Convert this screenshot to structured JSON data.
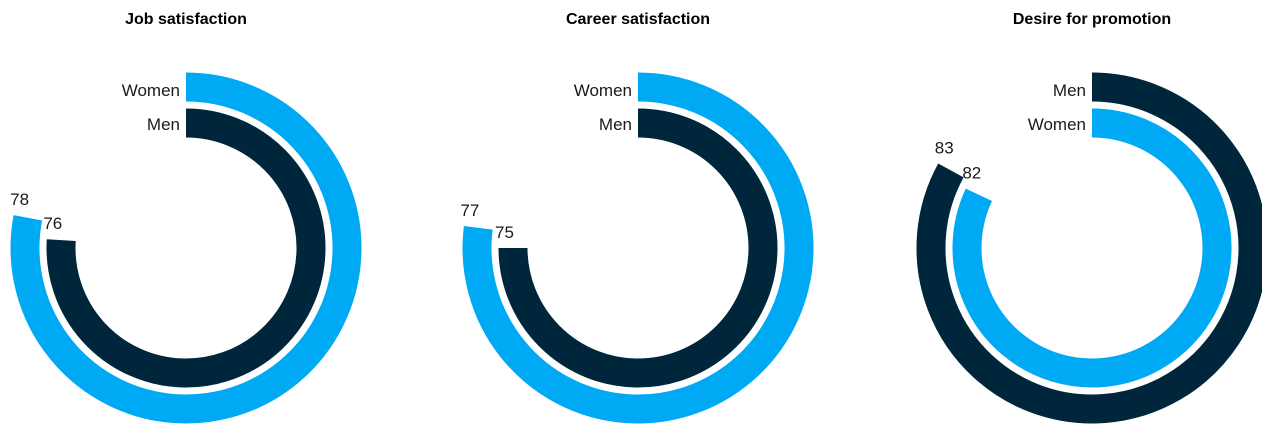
{
  "colors": {
    "women": "#00a9f4",
    "men": "#00263c"
  },
  "chart_data": [
    {
      "type": "radial-bar",
      "title": "Job satisfaction",
      "series": [
        {
          "name": "Women",
          "value": 78,
          "color": "#00a9f4"
        },
        {
          "name": "Men",
          "value": 76,
          "color": "#00263c"
        }
      ]
    },
    {
      "type": "radial-bar",
      "title": "Career satisfaction",
      "series": [
        {
          "name": "Women",
          "value": 77,
          "color": "#00a9f4"
        },
        {
          "name": "Men",
          "value": 75,
          "color": "#00263c"
        }
      ]
    },
    {
      "type": "radial-bar",
      "title": "Desire for promotion",
      "series": [
        {
          "name": "Men",
          "value": 83,
          "color": "#00263c"
        },
        {
          "name": "Women",
          "value": 82,
          "color": "#00a9f4"
        }
      ]
    }
  ]
}
